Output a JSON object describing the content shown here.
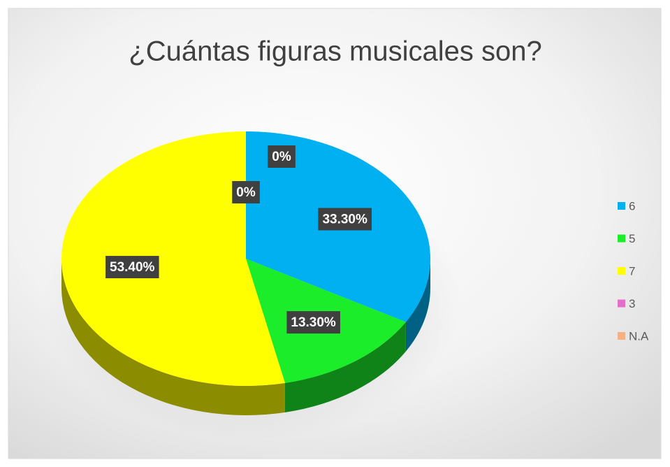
{
  "chart_data": {
    "type": "pie3d",
    "title": "¿Cuántas figuras musicales son?",
    "categories": [
      "6",
      "5",
      "7",
      "3",
      "N.A"
    ],
    "values": [
      33.3,
      13.3,
      53.4,
      0,
      0
    ],
    "value_labels": [
      "33.30%",
      "13.30%",
      "53.40%",
      "0%",
      "0%"
    ],
    "colors": [
      "#00b0f0",
      "#1ced2b",
      "#ffff00",
      "#e46fc8",
      "#f4b183"
    ],
    "legend": "right"
  }
}
